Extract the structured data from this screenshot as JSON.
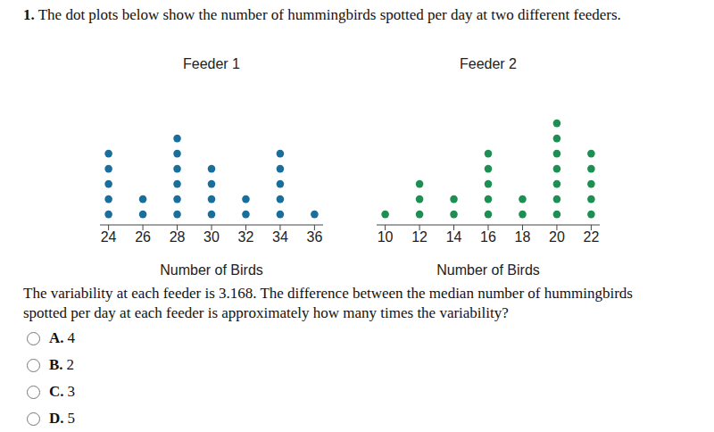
{
  "number": "1.",
  "intro": "The dot plots below show the number of hummingbirds spotted per day at two different feeders.",
  "chart_data": [
    {
      "type": "dot",
      "title": "Feeder 1",
      "xlabel": "Number of Birds",
      "x": [
        24,
        26,
        28,
        30,
        32,
        34,
        36
      ],
      "values": [
        5,
        2,
        6,
        4,
        2,
        5,
        1
      ],
      "color": "#1a6e9c",
      "xlim": [
        23.5,
        36.5
      ],
      "xticks": [
        24,
        26,
        28,
        30,
        32,
        34,
        36
      ],
      "tick_labels": "x"
    },
    {
      "type": "dot",
      "title": "Feeder 2",
      "xlabel": "Number of Birds",
      "x": [
        10,
        12,
        14,
        16,
        18,
        20,
        22
      ],
      "values": [
        1,
        3,
        2,
        5,
        2,
        7,
        5
      ],
      "color": "#1e8f52",
      "xlim": [
        9.5,
        22.5
      ],
      "xticks": [
        10,
        12,
        14,
        16,
        18,
        20,
        22
      ],
      "tick_labels": "x"
    }
  ],
  "question": "The variability at each feeder is 3.168. The difference between the median number of hummingbirds spotted per day at each feeder is approximately how many times the variability?",
  "options": [
    {
      "letter": "A.",
      "text": "4"
    },
    {
      "letter": "B.",
      "text": "2"
    },
    {
      "letter": "C.",
      "text": "3"
    },
    {
      "letter": "D.",
      "text": "5"
    }
  ]
}
